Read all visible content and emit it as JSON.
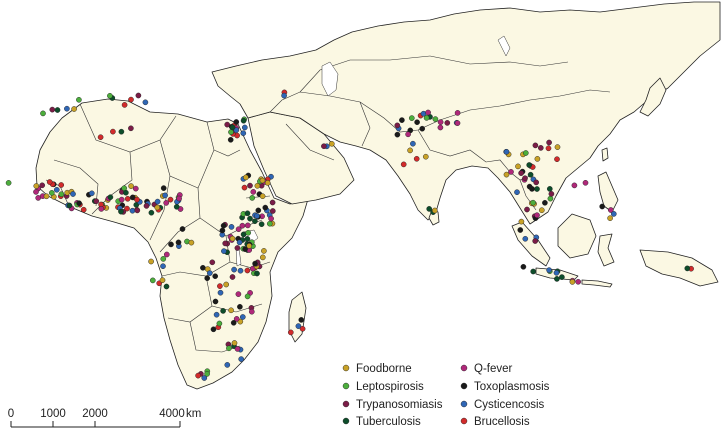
{
  "legend": {
    "items": [
      {
        "key": "foodborne",
        "label": "Foodborne",
        "color": "#c9a227"
      },
      {
        "key": "q_fever",
        "label": "Q-fever",
        "color": "#b0287a"
      },
      {
        "key": "leptospirosis",
        "label": "Leptospirosis",
        "color": "#4cae3c"
      },
      {
        "key": "toxoplasmosis",
        "label": "Toxoplasmosis",
        "color": "#1a1a1a"
      },
      {
        "key": "trypanosomiasis",
        "label": "Trypanosomiasis",
        "color": "#7b1c47"
      },
      {
        "key": "cysticercosis",
        "label": "Cysticencosis",
        "color": "#2f66b5"
      },
      {
        "key": "tuberculosis",
        "label": "Tuberculosis",
        "color": "#0d4d2a"
      },
      {
        "key": "brucellosis",
        "label": "Brucellosis",
        "color": "#d22b2b"
      }
    ]
  },
  "scale_bar": {
    "ticks": [
      "0",
      "1000",
      "2000",
      "4000"
    ],
    "tick_km": [
      0,
      1000,
      2000,
      4000
    ],
    "unit": "km"
  }
}
